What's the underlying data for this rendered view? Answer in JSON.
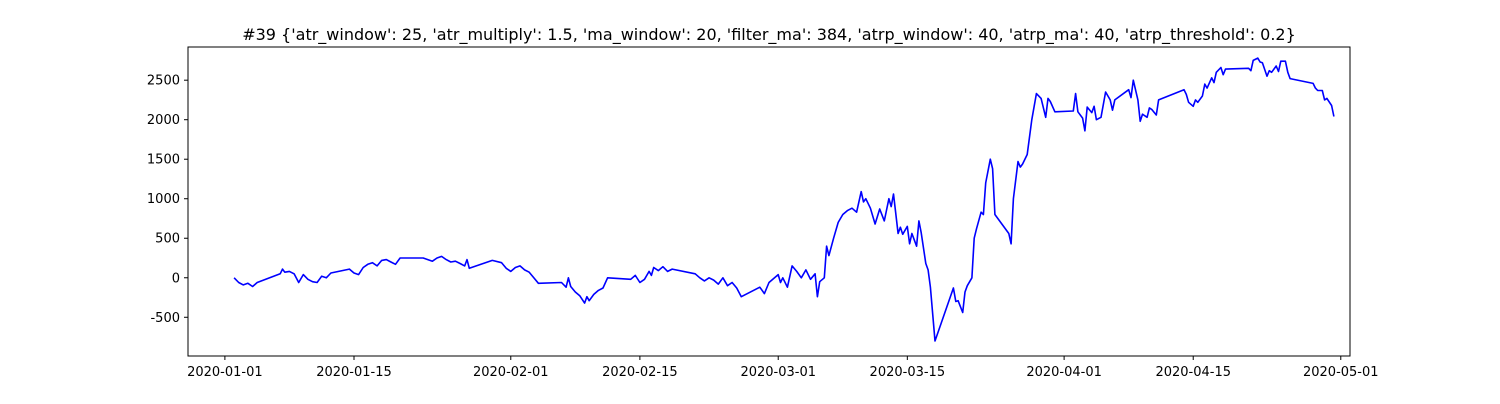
{
  "chart_data": {
    "type": "line",
    "title": "#39 {'atr_window': 25, 'atr_multiply': 1.5, 'ma_window': 20, 'filter_ma': 384, 'atrp_window': 40, 'atrp_ma': 40, 'atrp_threshold': 0.2}",
    "xlabel": "",
    "ylabel": "",
    "x_axis_type": "date",
    "xlim": [
      "2019-12-28",
      "2020-05-02"
    ],
    "ylim": [
      -990,
      2920
    ],
    "grid": false,
    "line_color": "#0000ff",
    "x_ticks": [
      "2020-01-01",
      "2020-01-15",
      "2020-02-01",
      "2020-02-15",
      "2020-03-01",
      "2020-03-15",
      "2020-04-01",
      "2020-04-15",
      "2020-05-01"
    ],
    "y_ticks": [
      -500,
      0,
      500,
      1000,
      1500,
      2000,
      2500
    ],
    "series": [
      {
        "name": "",
        "color": "#0000ff",
        "points": [
          [
            "2020-01-02",
            0
          ],
          [
            "2020-01-02T12:00",
            -60
          ],
          [
            "2020-01-03",
            -90
          ],
          [
            "2020-01-03T12:00",
            -70
          ],
          [
            "2020-01-04",
            -110
          ],
          [
            "2020-01-04T12:00",
            -60
          ],
          [
            "2020-01-07",
            50
          ],
          [
            "2020-01-07T06:00",
            110
          ],
          [
            "2020-01-07T12:00",
            70
          ],
          [
            "2020-01-08",
            80
          ],
          [
            "2020-01-08T12:00",
            50
          ],
          [
            "2020-01-09",
            -60
          ],
          [
            "2020-01-09T12:00",
            40
          ],
          [
            "2020-01-10",
            -20
          ],
          [
            "2020-01-10T12:00",
            -50
          ],
          [
            "2020-01-11",
            -60
          ],
          [
            "2020-01-11T12:00",
            20
          ],
          [
            "2020-01-12",
            0
          ],
          [
            "2020-01-12T12:00",
            60
          ],
          [
            "2020-01-14T12:00",
            110
          ],
          [
            "2020-01-15",
            60
          ],
          [
            "2020-01-15T12:00",
            40
          ],
          [
            "2020-01-16",
            130
          ],
          [
            "2020-01-16T12:00",
            170
          ],
          [
            "2020-01-17",
            190
          ],
          [
            "2020-01-17T12:00",
            150
          ],
          [
            "2020-01-18",
            220
          ],
          [
            "2020-01-18T12:00",
            230
          ],
          [
            "2020-01-19",
            200
          ],
          [
            "2020-01-19T12:00",
            170
          ],
          [
            "2020-01-20",
            250
          ],
          [
            "2020-01-22T12:00",
            250
          ],
          [
            "2020-01-23T12:00",
            210
          ],
          [
            "2020-01-24",
            250
          ],
          [
            "2020-01-24T12:00",
            270
          ],
          [
            "2020-01-25",
            230
          ],
          [
            "2020-01-25T12:00",
            200
          ],
          [
            "2020-01-26",
            210
          ],
          [
            "2020-01-26T12:00",
            180
          ],
          [
            "2020-01-27",
            150
          ],
          [
            "2020-01-27T06:00",
            230
          ],
          [
            "2020-01-27T12:00",
            120
          ],
          [
            "2020-01-30",
            220
          ],
          [
            "2020-01-31",
            190
          ],
          [
            "2020-01-31T12:00",
            120
          ],
          [
            "2020-02-01",
            80
          ],
          [
            "2020-02-01T12:00",
            130
          ],
          [
            "2020-02-02",
            150
          ],
          [
            "2020-02-02T12:00",
            100
          ],
          [
            "2020-02-03",
            70
          ],
          [
            "2020-02-03T12:00",
            0
          ],
          [
            "2020-02-04",
            -70
          ],
          [
            "2020-02-06T12:00",
            -60
          ],
          [
            "2020-02-07",
            -120
          ],
          [
            "2020-02-07T06:00",
            0
          ],
          [
            "2020-02-07T12:00",
            -110
          ],
          [
            "2020-02-08",
            -180
          ],
          [
            "2020-02-08T12:00",
            -230
          ],
          [
            "2020-02-09",
            -320
          ],
          [
            "2020-02-09T06:00",
            -240
          ],
          [
            "2020-02-09T12:00",
            -290
          ],
          [
            "2020-02-10",
            -210
          ],
          [
            "2020-02-10T12:00",
            -160
          ],
          [
            "2020-02-11",
            -130
          ],
          [
            "2020-02-11T12:00",
            0
          ],
          [
            "2020-02-14",
            -20
          ],
          [
            "2020-02-14T12:00",
            30
          ],
          [
            "2020-02-15",
            -60
          ],
          [
            "2020-02-15T12:00",
            -20
          ],
          [
            "2020-02-16",
            80
          ],
          [
            "2020-02-16T06:00",
            30
          ],
          [
            "2020-02-16T12:00",
            130
          ],
          [
            "2020-02-17",
            90
          ],
          [
            "2020-02-17T12:00",
            140
          ],
          [
            "2020-02-18",
            80
          ],
          [
            "2020-02-18T12:00",
            110
          ],
          [
            "2020-02-21",
            50
          ],
          [
            "2020-02-21T12:00",
            0
          ],
          [
            "2020-02-22",
            -40
          ],
          [
            "2020-02-22T12:00",
            0
          ],
          [
            "2020-02-23",
            -30
          ],
          [
            "2020-02-23T12:00",
            -80
          ],
          [
            "2020-02-24",
            0
          ],
          [
            "2020-02-24T12:00",
            -100
          ],
          [
            "2020-02-25",
            -60
          ],
          [
            "2020-02-25T12:00",
            -130
          ],
          [
            "2020-02-26",
            -240
          ],
          [
            "2020-02-28",
            -120
          ],
          [
            "2020-02-28T12:00",
            -200
          ],
          [
            "2020-02-29",
            -60
          ],
          [
            "2020-03-01",
            40
          ],
          [
            "2020-03-01T06:00",
            -60
          ],
          [
            "2020-03-01T12:00",
            0
          ],
          [
            "2020-03-02",
            -120
          ],
          [
            "2020-03-02T12:00",
            150
          ],
          [
            "2020-03-03",
            80
          ],
          [
            "2020-03-03T12:00",
            0
          ],
          [
            "2020-03-04",
            100
          ],
          [
            "2020-03-04T12:00",
            -20
          ],
          [
            "2020-03-05",
            50
          ],
          [
            "2020-03-05T06:00",
            -240
          ],
          [
            "2020-03-05T12:00",
            -50
          ],
          [
            "2020-03-06",
            0
          ],
          [
            "2020-03-06T06:00",
            400
          ],
          [
            "2020-03-06T12:00",
            280
          ],
          [
            "2020-03-07",
            500
          ],
          [
            "2020-03-07T12:00",
            700
          ],
          [
            "2020-03-08",
            800
          ],
          [
            "2020-03-08T12:00",
            850
          ],
          [
            "2020-03-09",
            880
          ],
          [
            "2020-03-09T12:00",
            830
          ],
          [
            "2020-03-10",
            1090
          ],
          [
            "2020-03-10T06:00",
            960
          ],
          [
            "2020-03-10T12:00",
            1000
          ],
          [
            "2020-03-11",
            880
          ],
          [
            "2020-03-11T12:00",
            680
          ],
          [
            "2020-03-12",
            870
          ],
          [
            "2020-03-12T12:00",
            720
          ],
          [
            "2020-03-13",
            1000
          ],
          [
            "2020-03-13T06:00",
            900
          ],
          [
            "2020-03-13T12:00",
            1060
          ],
          [
            "2020-03-14",
            560
          ],
          [
            "2020-03-14T06:00",
            640
          ],
          [
            "2020-03-14T12:00",
            550
          ],
          [
            "2020-03-15",
            650
          ],
          [
            "2020-03-15T06:00",
            430
          ],
          [
            "2020-03-15T12:00",
            560
          ],
          [
            "2020-03-16",
            400
          ],
          [
            "2020-03-16T06:00",
            720
          ],
          [
            "2020-03-16T12:00",
            570
          ],
          [
            "2020-03-17",
            180
          ],
          [
            "2020-03-17T06:00",
            100
          ],
          [
            "2020-03-17T12:00",
            -120
          ],
          [
            "2020-03-18",
            -800
          ],
          [
            "2020-03-20",
            -130
          ],
          [
            "2020-03-20T06:00",
            -300
          ],
          [
            "2020-03-20T12:00",
            -290
          ],
          [
            "2020-03-21",
            -440
          ],
          [
            "2020-03-21T06:00",
            -180
          ],
          [
            "2020-03-21T12:00",
            -100
          ],
          [
            "2020-03-22",
            0
          ],
          [
            "2020-03-22T06:00",
            500
          ],
          [
            "2020-03-22T12:00",
            620
          ],
          [
            "2020-03-23",
            830
          ],
          [
            "2020-03-23T06:00",
            800
          ],
          [
            "2020-03-23T12:00",
            1200
          ],
          [
            "2020-03-24",
            1500
          ],
          [
            "2020-03-24T06:00",
            1380
          ],
          [
            "2020-03-24T12:00",
            800
          ],
          [
            "2020-03-26",
            560
          ],
          [
            "2020-03-26T06:00",
            430
          ],
          [
            "2020-03-26T12:00",
            1000
          ],
          [
            "2020-03-27",
            1470
          ],
          [
            "2020-03-27T06:00",
            1400
          ],
          [
            "2020-03-27T12:00",
            1440
          ],
          [
            "2020-03-28",
            1560
          ],
          [
            "2020-03-28T12:00",
            2000
          ],
          [
            "2020-03-29",
            2330
          ],
          [
            "2020-03-29T12:00",
            2270
          ],
          [
            "2020-03-30",
            2030
          ],
          [
            "2020-03-30T06:00",
            2270
          ],
          [
            "2020-03-30T12:00",
            2230
          ],
          [
            "2020-03-31",
            2100
          ],
          [
            "2020-04-02",
            2110
          ],
          [
            "2020-04-02T06:00",
            2330
          ],
          [
            "2020-04-02T12:00",
            2100
          ],
          [
            "2020-04-03",
            2020
          ],
          [
            "2020-04-03T06:00",
            1860
          ],
          [
            "2020-04-03T12:00",
            2160
          ],
          [
            "2020-04-04",
            2090
          ],
          [
            "2020-04-04T06:00",
            2170
          ],
          [
            "2020-04-04T12:00",
            2000
          ],
          [
            "2020-04-05",
            2030
          ],
          [
            "2020-04-05T12:00",
            2350
          ],
          [
            "2020-04-06",
            2250
          ],
          [
            "2020-04-06T06:00",
            2120
          ],
          [
            "2020-04-06T12:00",
            2250
          ],
          [
            "2020-04-08",
            2380
          ],
          [
            "2020-04-08T06:00",
            2280
          ],
          [
            "2020-04-08T12:00",
            2500
          ],
          [
            "2020-04-09",
            2250
          ],
          [
            "2020-04-09T06:00",
            1980
          ],
          [
            "2020-04-09T12:00",
            2070
          ],
          [
            "2020-04-10",
            2030
          ],
          [
            "2020-04-10T06:00",
            2150
          ],
          [
            "2020-04-10T12:00",
            2130
          ],
          [
            "2020-04-11",
            2060
          ],
          [
            "2020-04-11T06:00",
            2250
          ],
          [
            "2020-04-14",
            2380
          ],
          [
            "2020-04-14T06:00",
            2320
          ],
          [
            "2020-04-14T12:00",
            2220
          ],
          [
            "2020-04-15",
            2170
          ],
          [
            "2020-04-15T06:00",
            2250
          ],
          [
            "2020-04-15T12:00",
            2220
          ],
          [
            "2020-04-16",
            2300
          ],
          [
            "2020-04-16T06:00",
            2450
          ],
          [
            "2020-04-16T12:00",
            2400
          ],
          [
            "2020-04-17",
            2530
          ],
          [
            "2020-04-17T06:00",
            2470
          ],
          [
            "2020-04-17T12:00",
            2600
          ],
          [
            "2020-04-18",
            2660
          ],
          [
            "2020-04-18T06:00",
            2570
          ],
          [
            "2020-04-18T12:00",
            2640
          ],
          [
            "2020-04-21",
            2650
          ],
          [
            "2020-04-21T06:00",
            2620
          ],
          [
            "2020-04-21T12:00",
            2750
          ],
          [
            "2020-04-22",
            2780
          ],
          [
            "2020-04-22T06:00",
            2730
          ],
          [
            "2020-04-22T12:00",
            2720
          ],
          [
            "2020-04-23",
            2550
          ],
          [
            "2020-04-23T06:00",
            2620
          ],
          [
            "2020-04-23T12:00",
            2600
          ],
          [
            "2020-04-24",
            2680
          ],
          [
            "2020-04-24T06:00",
            2610
          ],
          [
            "2020-04-24T12:00",
            2740
          ],
          [
            "2020-04-25",
            2740
          ],
          [
            "2020-04-25T06:00",
            2600
          ],
          [
            "2020-04-25T12:00",
            2520
          ],
          [
            "2020-04-28",
            2460
          ],
          [
            "2020-04-28T06:00",
            2400
          ],
          [
            "2020-04-28T12:00",
            2370
          ],
          [
            "2020-04-29",
            2370
          ],
          [
            "2020-04-29T06:00",
            2250
          ],
          [
            "2020-04-29T12:00",
            2270
          ],
          [
            "2020-04-30",
            2180
          ],
          [
            "2020-04-30T06:00",
            2040
          ]
        ]
      }
    ]
  }
}
